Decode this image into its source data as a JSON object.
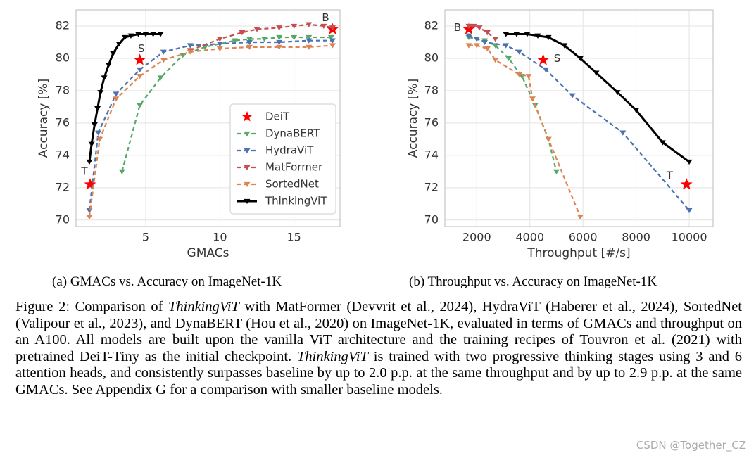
{
  "chart_data": [
    {
      "type": "line",
      "subcaption": "(a) GMACs vs. Accuracy on ImageNet-1K",
      "xlabel": "GMACs",
      "ylabel": "Accuracy [%]",
      "xlim": [
        0.3,
        18.1
      ],
      "ylim": [
        69.6,
        83
      ],
      "xticks": [
        5,
        10,
        15
      ],
      "yticks": [
        70,
        72,
        74,
        76,
        78,
        80,
        82
      ],
      "grid": true,
      "legend": "lower right",
      "series": [
        {
          "name": "DeiT",
          "color": "#ff0000",
          "marker": "star",
          "line": "none",
          "x": [
            1.25,
            4.6,
            17.6
          ],
          "values": [
            72.2,
            79.9,
            81.8
          ],
          "point_labels": [
            "T",
            "S",
            "B"
          ]
        },
        {
          "name": "DynaBERT",
          "color": "#55a868",
          "marker": "tri",
          "line": "dashed",
          "x": [
            3.4,
            4.6,
            6.0,
            7.5,
            9,
            10,
            11,
            12,
            13,
            14,
            15,
            16,
            17.5
          ],
          "values": [
            73.0,
            77.1,
            78.8,
            80.2,
            80.7,
            80.9,
            81.1,
            81.2,
            81.2,
            81.3,
            81.3,
            81.3,
            81.3
          ]
        },
        {
          "name": "HydraViT",
          "color": "#4c72b0",
          "marker": "tri",
          "line": "dashed",
          "x": [
            1.2,
            1.8,
            3.0,
            4.6,
            6.2,
            8,
            10,
            12,
            14,
            16,
            17.6
          ],
          "values": [
            70.6,
            75.4,
            77.8,
            79.3,
            80.4,
            80.8,
            80.9,
            81.0,
            81.0,
            81.1,
            81.1
          ]
        },
        {
          "name": "MatFormer",
          "color": "#c44e52",
          "marker": "tri",
          "line": "dashed",
          "x": [
            8,
            10,
            11.5,
            12.5,
            14,
            15,
            16,
            17,
            17.6
          ],
          "values": [
            80.5,
            81.2,
            81.6,
            81.8,
            81.9,
            82.0,
            82.1,
            82.0,
            81.9
          ]
        },
        {
          "name": "SortedNet",
          "color": "#dd8452",
          "marker": "tri",
          "line": "dashed",
          "x": [
            1.2,
            1.9,
            3.0,
            4.6,
            6.2,
            8,
            10,
            12,
            14,
            16,
            17.6
          ],
          "values": [
            70.2,
            75.0,
            77.5,
            78.9,
            79.9,
            80.4,
            80.6,
            80.7,
            80.7,
            80.7,
            80.8
          ]
        },
        {
          "name": "ThinkingViT",
          "color": "#000000",
          "marker": "tri",
          "line": "solid",
          "x": [
            1.2,
            1.35,
            1.55,
            1.75,
            1.95,
            2.2,
            2.5,
            2.8,
            3.2,
            3.6,
            4.0,
            4.5,
            5.0,
            5.5,
            6.0
          ],
          "values": [
            73.6,
            74.7,
            75.9,
            76.9,
            77.9,
            78.8,
            79.6,
            80.3,
            80.9,
            81.3,
            81.4,
            81.5,
            81.5,
            81.5,
            81.5
          ]
        }
      ]
    },
    {
      "type": "line",
      "subcaption": "(b) Throughput vs. Accuracy on ImageNet-1K",
      "xlabel": "Throughput [#/s]",
      "ylabel": "Accuracy [%]",
      "xlim": [
        800,
        10900
      ],
      "ylim": [
        69.6,
        83
      ],
      "xticks": [
        2000,
        4000,
        6000,
        8000,
        10000
      ],
      "yticks": [
        70,
        72,
        74,
        76,
        78,
        80,
        82
      ],
      "grid": true,
      "series": [
        {
          "name": "DeiT",
          "color": "#ff0000",
          "marker": "star",
          "line": "none",
          "x": [
            1700,
            4500,
            9900
          ],
          "values": [
            81.8,
            79.9,
            72.2
          ],
          "point_labels": [
            "B",
            "S",
            "T"
          ]
        },
        {
          "name": "DynaBERT",
          "color": "#55a868",
          "marker": "tri",
          "line": "dashed",
          "x": [
            1700,
            2000,
            2300,
            2700,
            3200,
            3700,
            4200,
            4700,
            5000
          ],
          "values": [
            81.3,
            81.2,
            81.1,
            80.8,
            80.0,
            78.9,
            77.1,
            75.0,
            73.0
          ]
        },
        {
          "name": "HydraViT",
          "color": "#4c72b0",
          "marker": "tri",
          "line": "dashed",
          "x": [
            1700,
            2000,
            2300,
            3100,
            3600,
            4600,
            5600,
            7500,
            10000
          ],
          "values": [
            81.4,
            81.2,
            81.0,
            80.8,
            80.4,
            79.3,
            77.7,
            75.4,
            70.6
          ]
        },
        {
          "name": "MatFormer",
          "color": "#c44e52",
          "marker": "tri",
          "line": "dashed",
          "x": [
            1700,
            1900,
            2100,
            2400,
            2700
          ],
          "values": [
            82.0,
            82.0,
            81.9,
            81.6,
            81.2
          ]
        },
        {
          "name": "SortedNet",
          "color": "#dd8452",
          "marker": "tri",
          "line": "dashed",
          "x": [
            1700,
            2000,
            2400,
            2700,
            3600,
            3950,
            4100,
            4700,
            5900
          ],
          "values": [
            80.8,
            80.8,
            80.6,
            79.9,
            79.0,
            78.9,
            77.5,
            75.0,
            70.2
          ]
        },
        {
          "name": "ThinkingViT",
          "color": "#000000",
          "marker": "tri",
          "line": "solid",
          "x": [
            3100,
            3500,
            3900,
            4300,
            4700,
            5300,
            5900,
            6500,
            7300,
            8000,
            9000,
            10000
          ],
          "values": [
            81.5,
            81.5,
            81.5,
            81.4,
            81.3,
            80.8,
            80.0,
            79.1,
            77.9,
            76.8,
            74.8,
            73.6
          ]
        }
      ]
    }
  ],
  "caption": [
    {
      "text": "Figure 2: Comparison of ",
      "italic": false
    },
    {
      "text": "ThinkingViT",
      "italic": true
    },
    {
      "text": " with MatFormer (Devvrit et al., 2024), HydraViT (Haberer et al., 2024), SortedNet (Valipour et al., 2023), and DynaBERT (Hou et al., 2020) on ImageNet-1K, evaluated in terms of GMACs and throughput on an A100. All models are built upon the vanilla ViT architecture and the training recipes of Touvron et al. (2021) with pretrained DeiT-Tiny as the initial checkpoint. ",
      "italic": false
    },
    {
      "text": "ThinkingViT",
      "italic": true
    },
    {
      "text": " is trained with two progressive thinking stages using 3 and 6 attention heads, and consistently surpasses baseline by up to 2.0 p.p. at the same throughput and by up to 2.9 p.p. at the same GMACs. See Appendix G for a comparison with smaller baseline models.",
      "italic": false
    }
  ],
  "watermark": "CSDN @Together_CZ"
}
